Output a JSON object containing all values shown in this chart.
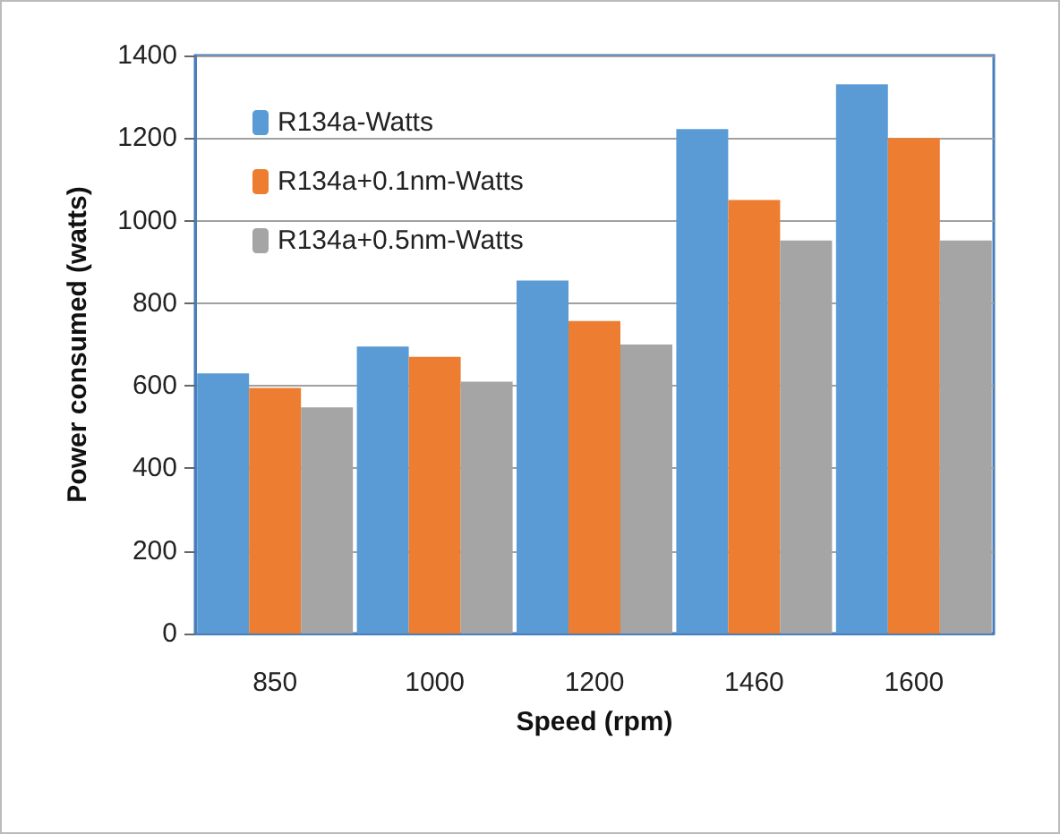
{
  "chart_data": {
    "type": "bar",
    "xlabel": "Speed (rpm)",
    "ylabel": "Power consumed (watts)",
    "categories": [
      "850",
      "1000",
      "1200",
      "1460",
      "1600"
    ],
    "series": [
      {
        "name": "R134a-Watts",
        "color": "#5b9bd5",
        "values": [
          630,
          695,
          855,
          1222,
          1330
        ]
      },
      {
        "name": "R134a+0.1nm-Watts",
        "color": "#ed7d31",
        "values": [
          595,
          670,
          757,
          1050,
          1200
        ]
      },
      {
        "name": "R134a+0.5nm-Watts",
        "color": "#a5a5a5",
        "values": [
          548,
          610,
          700,
          952,
          952
        ]
      }
    ],
    "ylim": [
      0,
      1400
    ],
    "yticks": [
      0,
      200,
      400,
      600,
      800,
      1000,
      1200,
      1400
    ],
    "grid": "y",
    "legend": "top left"
  }
}
